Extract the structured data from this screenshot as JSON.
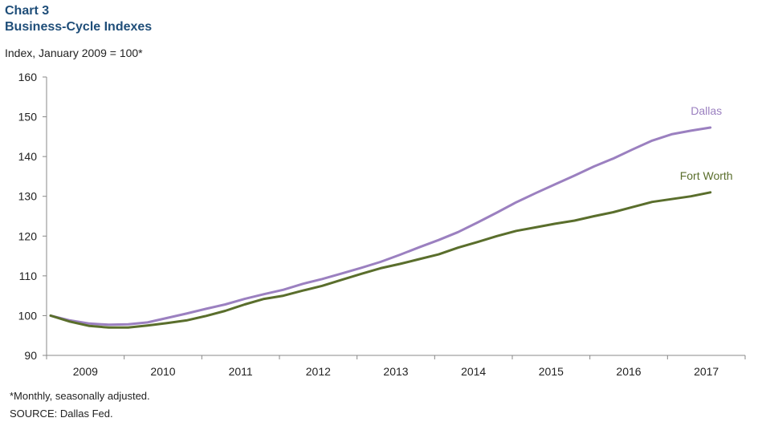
{
  "header": {
    "chart_number": "Chart 3",
    "title": "Business-Cycle Indexes",
    "unit_label": "Index, January 2009 = 100*"
  },
  "footer": {
    "footnote": "*Monthly, seasonally adjusted.",
    "source": "SOURCE: Dallas Fed."
  },
  "colors": {
    "dallas": "#9b80c0",
    "fort_worth": "#5a6e2c",
    "axis": "#888888"
  },
  "chart_data": {
    "type": "line",
    "title": "Business-Cycle Indexes",
    "ylabel": "Index, January 2009 = 100*",
    "xlabel": "",
    "ylim": [
      90,
      160
    ],
    "yticks": [
      90,
      100,
      110,
      120,
      130,
      140,
      150,
      160
    ],
    "x_categories": [
      "2009",
      "2010",
      "2011",
      "2012",
      "2013",
      "2014",
      "2015",
      "2016",
      "2017"
    ],
    "grid": false,
    "series": [
      {
        "name": "Dallas",
        "color": "#9b80c0",
        "points": [
          [
            "2009-01",
            100
          ],
          [
            "2009-04",
            98.8
          ],
          [
            "2009-07",
            98.0
          ],
          [
            "2009-10",
            97.7
          ],
          [
            "2010-01",
            97.8
          ],
          [
            "2010-04",
            98.3
          ],
          [
            "2010-07",
            99.4
          ],
          [
            "2010-10",
            100.5
          ],
          [
            "2011-01",
            101.7
          ],
          [
            "2011-04",
            102.8
          ],
          [
            "2011-07",
            104.2
          ],
          [
            "2011-10",
            105.4
          ],
          [
            "2012-01",
            106.5
          ],
          [
            "2012-04",
            108.0
          ],
          [
            "2012-07",
            109.2
          ],
          [
            "2012-10",
            110.6
          ],
          [
            "2013-01",
            112.0
          ],
          [
            "2013-04",
            113.5
          ],
          [
            "2013-07",
            115.3
          ],
          [
            "2013-10",
            117.2
          ],
          [
            "2014-01",
            119.0
          ],
          [
            "2014-04",
            121.0
          ],
          [
            "2014-07",
            123.4
          ],
          [
            "2014-10",
            125.9
          ],
          [
            "2015-01",
            128.5
          ],
          [
            "2015-04",
            130.8
          ],
          [
            "2015-07",
            133.0
          ],
          [
            "2015-10",
            135.2
          ],
          [
            "2016-01",
            137.5
          ],
          [
            "2016-04",
            139.5
          ],
          [
            "2016-07",
            141.8
          ],
          [
            "2016-10",
            144.0
          ],
          [
            "2017-01",
            145.6
          ],
          [
            "2017-04",
            146.5
          ],
          [
            "2017-07",
            147.3
          ]
        ]
      },
      {
        "name": "Fort Worth",
        "color": "#5a6e2c",
        "points": [
          [
            "2009-01",
            100
          ],
          [
            "2009-04",
            98.5
          ],
          [
            "2009-07",
            97.4
          ],
          [
            "2009-10",
            97.0
          ],
          [
            "2010-01",
            97.0
          ],
          [
            "2010-04",
            97.5
          ],
          [
            "2010-07",
            98.1
          ],
          [
            "2010-10",
            98.8
          ],
          [
            "2011-01",
            99.9
          ],
          [
            "2011-04",
            101.2
          ],
          [
            "2011-07",
            102.8
          ],
          [
            "2011-10",
            104.2
          ],
          [
            "2012-01",
            105.0
          ],
          [
            "2012-04",
            106.3
          ],
          [
            "2012-07",
            107.5
          ],
          [
            "2012-10",
            109.0
          ],
          [
            "2013-01",
            110.5
          ],
          [
            "2013-04",
            111.9
          ],
          [
            "2013-07",
            113.0
          ],
          [
            "2013-10",
            114.2
          ],
          [
            "2014-01",
            115.4
          ],
          [
            "2014-04",
            117.1
          ],
          [
            "2014-07",
            118.5
          ],
          [
            "2014-10",
            120.0
          ],
          [
            "2015-01",
            121.3
          ],
          [
            "2015-04",
            122.2
          ],
          [
            "2015-07",
            123.1
          ],
          [
            "2015-10",
            123.9
          ],
          [
            "2016-01",
            125.0
          ],
          [
            "2016-04",
            126.0
          ],
          [
            "2016-07",
            127.3
          ],
          [
            "2016-10",
            128.6
          ],
          [
            "2017-01",
            129.3
          ],
          [
            "2017-04",
            130.0
          ],
          [
            "2017-07",
            131.0
          ]
        ]
      }
    ]
  }
}
